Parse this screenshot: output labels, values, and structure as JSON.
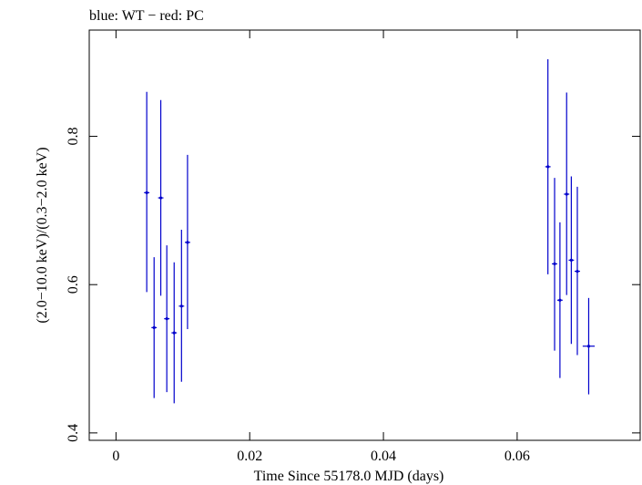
{
  "chart_data": {
    "type": "scatter",
    "title": "blue: WT − red: PC",
    "xlabel": "Time Since 55178.0 MJD (days)",
    "ylabel": "(2.0−10.0 keV)/(0.3−2.0 keV)",
    "xlim": [
      -0.004,
      0.0784
    ],
    "ylim": [
      0.39,
      0.9433
    ],
    "x_ticks": [
      0,
      0.02,
      0.04,
      0.06
    ],
    "x_tick_labels": [
      "0",
      "0.02",
      "0.04",
      "0.06"
    ],
    "y_ticks": [
      0.4,
      0.6,
      0.8
    ],
    "y_tick_labels": [
      "0.4",
      "0.6",
      "0.8"
    ],
    "grid": false,
    "series": [
      {
        "name": "WT",
        "color": "#0000cc",
        "points": [
          {
            "x": 0.0046,
            "xerr": 0.0004,
            "y": 0.724,
            "ylo": 0.59,
            "yhi": 0.86
          },
          {
            "x": 0.0057,
            "xerr": 0.0004,
            "y": 0.542,
            "ylo": 0.447,
            "yhi": 0.637
          },
          {
            "x": 0.0067,
            "xerr": 0.0004,
            "y": 0.717,
            "ylo": 0.585,
            "yhi": 0.849
          },
          {
            "x": 0.0076,
            "xerr": 0.0004,
            "y": 0.554,
            "ylo": 0.455,
            "yhi": 0.653
          },
          {
            "x": 0.0087,
            "xerr": 0.0004,
            "y": 0.535,
            "ylo": 0.44,
            "yhi": 0.63
          },
          {
            "x": 0.0098,
            "xerr": 0.0004,
            "y": 0.571,
            "ylo": 0.469,
            "yhi": 0.674
          },
          {
            "x": 0.0107,
            "xerr": 0.0004,
            "y": 0.657,
            "ylo": 0.54,
            "yhi": 0.775
          },
          {
            "x": 0.0646,
            "xerr": 0.0004,
            "y": 0.759,
            "ylo": 0.614,
            "yhi": 0.904
          },
          {
            "x": 0.0656,
            "xerr": 0.0004,
            "y": 0.628,
            "ylo": 0.511,
            "yhi": 0.744
          },
          {
            "x": 0.0664,
            "xerr": 0.0004,
            "y": 0.579,
            "ylo": 0.474,
            "yhi": 0.684
          },
          {
            "x": 0.0674,
            "xerr": 0.0004,
            "y": 0.722,
            "ylo": 0.586,
            "yhi": 0.859
          },
          {
            "x": 0.0681,
            "xerr": 0.0004,
            "y": 0.633,
            "ylo": 0.52,
            "yhi": 0.746
          },
          {
            "x": 0.069,
            "xerr": 0.0004,
            "y": 0.618,
            "ylo": 0.505,
            "yhi": 0.732
          },
          {
            "x": 0.0707,
            "xerr": 0.0009,
            "y": 0.517,
            "ylo": 0.452,
            "yhi": 0.582
          }
        ]
      }
    ]
  }
}
